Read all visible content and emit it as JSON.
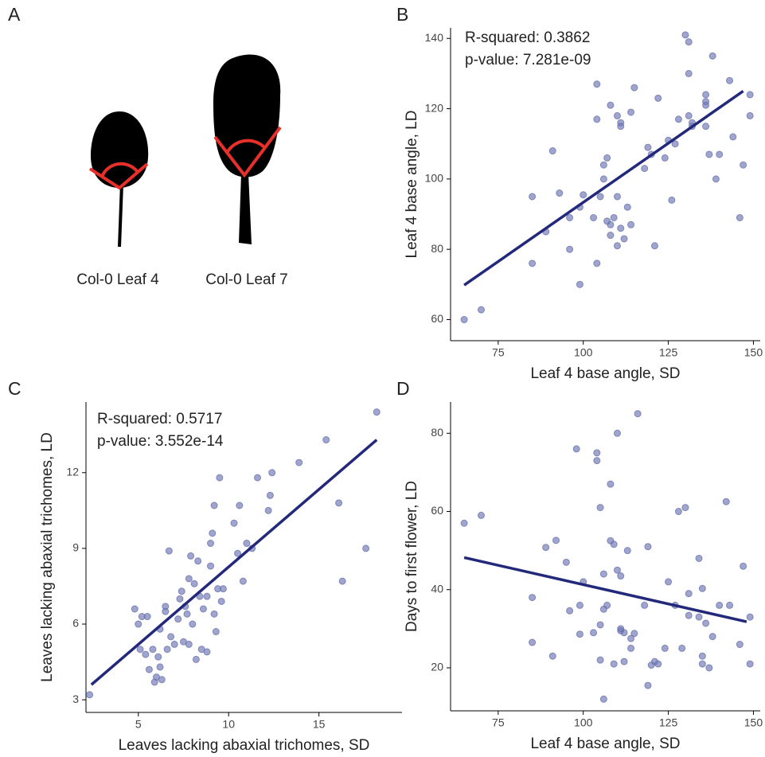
{
  "panel_a": {
    "label": "A",
    "captions": [
      "Col-0 Leaf 4",
      "Col-0 Leaf 7"
    ]
  },
  "chart_data": [
    {
      "type": "scatter",
      "panel_label": "B",
      "x_label": "Leaf 4 base angle, SD",
      "y_label": "Leaf 4 base angle, LD",
      "annotations": [
        "R-squared:  0.3862",
        "p-value: 7.281e-09"
      ],
      "color": "#6b74b0",
      "trend_color": "#23297a",
      "xlim": [
        61,
        152
      ],
      "ylim": [
        54,
        143
      ],
      "xticks": [
        75,
        100,
        125,
        150
      ],
      "yticks": [
        60,
        80,
        100,
        120,
        140
      ],
      "x": [
        65,
        70,
        85,
        85,
        89,
        91,
        93,
        96,
        96,
        99,
        99,
        100,
        103,
        104,
        104,
        104,
        105,
        106,
        106,
        107,
        107,
        108,
        108,
        108,
        109,
        110,
        110,
        110,
        111,
        111,
        111,
        112,
        113,
        114,
        114,
        115,
        118,
        119,
        120,
        121,
        122,
        124,
        125,
        126,
        127,
        128,
        130,
        131,
        131,
        131,
        132,
        132,
        136,
        136,
        136,
        136,
        137,
        138,
        139,
        140,
        143,
        144,
        146,
        147,
        149,
        149
      ],
      "y": [
        60,
        62.8,
        76,
        95,
        85,
        108,
        96,
        80,
        89,
        70,
        92,
        95.5,
        89,
        127,
        117,
        76,
        95,
        100,
        104,
        106,
        88,
        121,
        84,
        87,
        89,
        81,
        95,
        118,
        116,
        86,
        115,
        83,
        92,
        119,
        87,
        126,
        103,
        109,
        107,
        81,
        123,
        106,
        111,
        94,
        110,
        117,
        141,
        139,
        130,
        118,
        116,
        115,
        124,
        122,
        121,
        115,
        107,
        135,
        100,
        107,
        128,
        112,
        89,
        104,
        124,
        118
      ],
      "trend": {
        "x": [
          65,
          147
        ],
        "y": [
          69.8,
          125
        ]
      }
    },
    {
      "type": "scatter",
      "panel_label": "C",
      "x_label": "Leaves lacking abaxial trichomes, SD",
      "y_label": "Leaves lacking abaxial trichomes, LD",
      "annotations": [
        "R-squared:  0.5717",
        "p-value: 3.552e-14"
      ],
      "color": "#6b74b0",
      "trend_color": "#23297a",
      "xlim": [
        2.1,
        19.6
      ],
      "ylim": [
        2.5,
        14.8
      ],
      "xticks": [
        5,
        10,
        15
      ],
      "yticks": [
        3,
        6,
        9,
        12
      ],
      "x": [
        2.3,
        4.8,
        5,
        5.1,
        5.2,
        5.4,
        5.5,
        5.6,
        5.8,
        5.9,
        6,
        6.1,
        6.2,
        6.2,
        6.3,
        6.5,
        6.5,
        6.6,
        6.7,
        6.8,
        7,
        7.2,
        7.3,
        7.4,
        7.5,
        7.6,
        7.7,
        7.8,
        7.8,
        7.9,
        8,
        8.1,
        8.2,
        8.3,
        8.4,
        8.5,
        8.6,
        8.8,
        8.8,
        9,
        9,
        9.1,
        9.2,
        9.2,
        9.3,
        9.4,
        9.5,
        9.6,
        9.7,
        10.3,
        10.5,
        10.6,
        10.8,
        11,
        11.3,
        11.6,
        12.2,
        12.3,
        12.4,
        13.9,
        15.4,
        16.1,
        16.3,
        17.6,
        18.2
      ],
      "y": [
        3.2,
        6.6,
        6,
        5,
        6.3,
        4.8,
        6.3,
        4.2,
        5,
        3.7,
        3.9,
        4.7,
        4.3,
        5.8,
        3.8,
        6.5,
        6.7,
        5,
        8.9,
        5.5,
        5.2,
        6.2,
        7,
        7.3,
        5.3,
        6.7,
        6.4,
        7.8,
        5.2,
        8.7,
        6,
        7.6,
        4.6,
        8.5,
        7.1,
        5,
        6.6,
        7.1,
        4.9,
        8.3,
        9.2,
        9.6,
        10.7,
        6.4,
        5.7,
        7.4,
        11.8,
        6.9,
        7.4,
        10,
        8.8,
        10.7,
        7.7,
        9.2,
        9,
        11.8,
        10.5,
        11.1,
        12,
        12.4,
        13.3,
        10.8,
        7.7,
        9,
        14.4
      ],
      "trend": {
        "x": [
          2.4,
          18.2
        ],
        "y": [
          3.6,
          13.3
        ]
      }
    },
    {
      "type": "scatter",
      "panel_label": "D",
      "x_label": "Leaf 4 base angle, SD",
      "y_label": "Days to first flower, LD",
      "color": "#6b74b0",
      "trend_color": "#23297a",
      "xlim": [
        61,
        152
      ],
      "ylim": [
        9,
        88
      ],
      "xticks": [
        75,
        100,
        125,
        150
      ],
      "yticks": [
        20,
        40,
        60,
        80
      ],
      "x": [
        65,
        70,
        85,
        85,
        89,
        91,
        92,
        95,
        96,
        98,
        99,
        99,
        100,
        103,
        104,
        104,
        105,
        105,
        105,
        106,
        106,
        106,
        107,
        108,
        108,
        109,
        109,
        110,
        110,
        111,
        111,
        111,
        112,
        112,
        113,
        114,
        114,
        115,
        116,
        118,
        119,
        119,
        120,
        121,
        122,
        124,
        125,
        127,
        128,
        129,
        130,
        131,
        131,
        134,
        134,
        135,
        135,
        135,
        136,
        137,
        138,
        140,
        142,
        143,
        146,
        147,
        149,
        149
      ],
      "y": [
        57,
        59,
        38,
        26.5,
        50.8,
        23,
        52.6,
        47,
        34.6,
        76,
        36,
        28.6,
        42,
        29,
        75,
        73,
        31,
        61,
        22,
        44,
        35,
        12,
        36,
        67,
        52.5,
        51.6,
        21,
        80,
        45,
        43.5,
        30,
        29.5,
        29,
        21.6,
        50,
        25,
        27.5,
        28.8,
        85,
        36,
        51,
        15.5,
        20.7,
        21.6,
        21,
        25,
        42,
        36,
        60,
        25,
        61,
        39,
        33.4,
        33,
        48,
        40.3,
        23,
        21,
        31.4,
        20,
        28,
        36,
        62.5,
        36,
        26,
        46,
        33,
        21
      ],
      "trend": {
        "x": [
          65,
          148
        ],
        "y": [
          48.2,
          31.8
        ]
      }
    }
  ]
}
